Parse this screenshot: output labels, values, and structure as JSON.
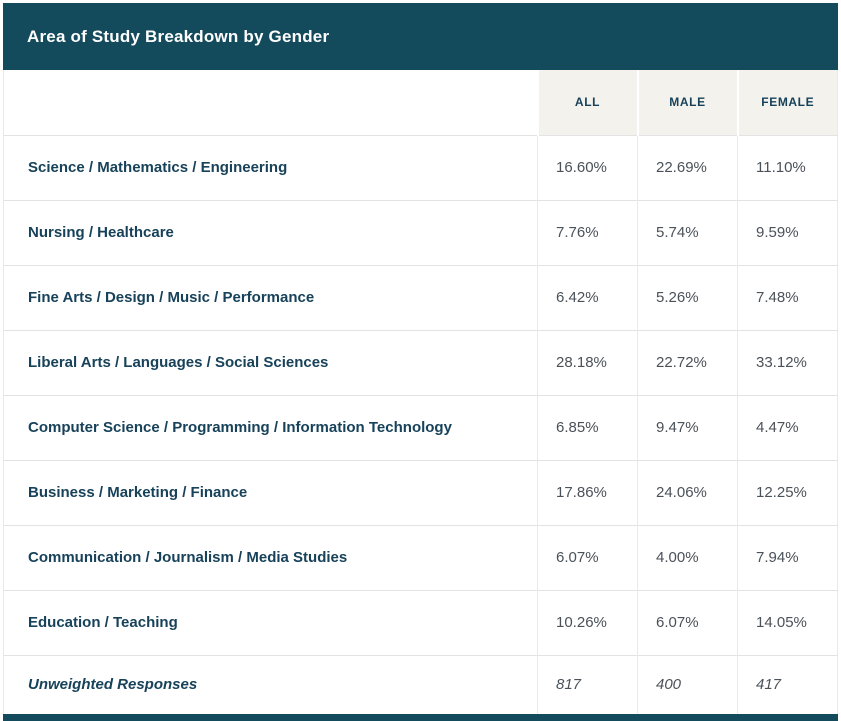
{
  "header": {
    "title": "Area of Study Breakdown by Gender"
  },
  "columns": {
    "all": "ALL",
    "male": "MALE",
    "female": "FEMALE"
  },
  "rows": [
    {
      "label": "Science / Mathematics / Engineering",
      "all": "16.60%",
      "male": "22.69%",
      "female": "11.10%"
    },
    {
      "label": "Nursing / Healthcare",
      "all": "7.76%",
      "male": "5.74%",
      "female": "9.59%"
    },
    {
      "label": "Fine Arts / Design / Music / Performance",
      "all": "6.42%",
      "male": "5.26%",
      "female": "7.48%"
    },
    {
      "label": "Liberal Arts / Languages / Social Sciences",
      "all": "28.18%",
      "male": "22.72%",
      "female": "33.12%"
    },
    {
      "label": "Computer Science / Programming / Information Technology",
      "all": "6.85%",
      "male": "9.47%",
      "female": "4.47%"
    },
    {
      "label": "Business / Marketing / Finance",
      "all": "17.86%",
      "male": "24.06%",
      "female": "12.25%"
    },
    {
      "label": "Communication / Journalism / Media Studies",
      "all": "6.07%",
      "male": "4.00%",
      "female": "7.94%"
    },
    {
      "label": "Education / Teaching",
      "all": "10.26%",
      "male": "6.07%",
      "female": "14.05%"
    }
  ],
  "footer_row": {
    "label": "Unweighted Responses",
    "all": "817",
    "male": "400",
    "female": "417"
  },
  "colors": {
    "banner_bg": "#134A5C",
    "banner_text": "#FFFFFF",
    "header_bg": "#F4F2ED",
    "heading_text": "#17425A",
    "value_text": "#4A5158",
    "row_border": "#E3E3E3",
    "col_border": "#EAEAEA"
  },
  "chart_data": {
    "type": "table",
    "title": "Area of Study Breakdown by Gender",
    "categories": [
      "Science / Mathematics / Engineering",
      "Nursing / Healthcare",
      "Fine Arts / Design / Music / Performance",
      "Liberal Arts / Languages / Social Sciences",
      "Computer Science / Programming / Information Technology",
      "Business / Marketing / Finance",
      "Communication / Journalism / Media Studies",
      "Education / Teaching"
    ],
    "series": [
      {
        "name": "ALL",
        "values": [
          16.6,
          7.76,
          6.42,
          28.18,
          6.85,
          17.86,
          6.07,
          10.26
        ]
      },
      {
        "name": "MALE",
        "values": [
          22.69,
          5.74,
          5.26,
          22.72,
          9.47,
          24.06,
          4.0,
          6.07
        ]
      },
      {
        "name": "FEMALE",
        "values": [
          11.1,
          9.59,
          7.48,
          33.12,
          4.47,
          12.25,
          7.94,
          14.05
        ]
      }
    ],
    "unit": "%",
    "unweighted_responses": {
      "ALL": 817,
      "MALE": 400,
      "FEMALE": 417
    }
  }
}
